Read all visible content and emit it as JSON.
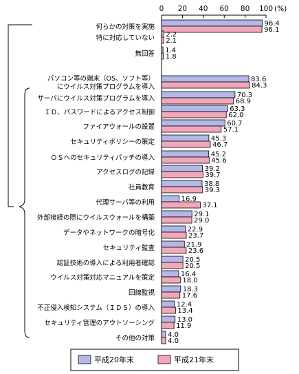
{
  "chart_data": {
    "type": "bar",
    "orientation": "horizontal",
    "unit": "(%)",
    "xlim": [
      0,
      100
    ],
    "ticks": [
      "0",
      "20",
      "40",
      "60",
      "80",
      "100"
    ],
    "colors": {
      "平成20年末": "#b4b8e8",
      "平成21年末": "#f2a8bb"
    },
    "series": [
      {
        "name": "平成20年末"
      },
      {
        "name": "平成21年末"
      }
    ],
    "rows": [
      {
        "label": [
          "何らかの対策を実施"
        ],
        "values": [
          96.4,
          96.1
        ]
      },
      {
        "label": [
          "特に対応していない"
        ],
        "values": [
          2.2,
          2.1
        ]
      },
      {
        "label": [
          "無回答"
        ],
        "values": [
          1.4,
          1.8
        ]
      },
      {
        "label": [
          "パソコン等の端末（OS、ソフト等）",
          "にウイルス対策プログラムを導入"
        ],
        "values": [
          83.6,
          84.3
        ]
      },
      {
        "label": [
          "サーバにウイルス対策プログラムを導入"
        ],
        "values": [
          70.3,
          68.9
        ]
      },
      {
        "label": [
          "ＩＤ、パスワードによるアクセス制御"
        ],
        "values": [
          63.3,
          62.0
        ]
      },
      {
        "label": [
          "ファイアウォールの設置"
        ],
        "values": [
          60.7,
          57.1
        ]
      },
      {
        "label": [
          "セキュリティポリシーの策定"
        ],
        "values": [
          45.3,
          46.7
        ]
      },
      {
        "label": [
          "ＯＳへのセキュリティパッチの導入"
        ],
        "values": [
          45.2,
          45.6
        ]
      },
      {
        "label": [
          "アクセスログの記録"
        ],
        "values": [
          39.2,
          39.7
        ]
      },
      {
        "label": [
          "社員教育"
        ],
        "values": [
          38.8,
          39.3
        ]
      },
      {
        "label": [
          "代理サーバ等の利用"
        ],
        "values": [
          16.9,
          37.1
        ]
      },
      {
        "label": [
          "外部接続の際にウイルスウォールを構築"
        ],
        "values": [
          29.1,
          29.0
        ]
      },
      {
        "label": [
          "データやネットワークの暗号化"
        ],
        "values": [
          22.9,
          23.7
        ]
      },
      {
        "label": [
          "セキュリティ監査"
        ],
        "values": [
          21.9,
          23.6
        ]
      },
      {
        "label": [
          "認証技術の導入による利用者確認"
        ],
        "values": [
          20.5,
          20.5
        ]
      },
      {
        "label": [
          "ウイルス対策対応マニュアルを策定"
        ],
        "values": [
          16.4,
          18.0
        ]
      },
      {
        "label": [
          "回線監視"
        ],
        "values": [
          18.3,
          17.6
        ]
      },
      {
        "label": [
          "不正侵入検知システム（ＩＤＳ）の導入"
        ],
        "values": [
          12.4,
          13.4
        ]
      },
      {
        "label": [
          "セキュリティ管理のアウトソーシング"
        ],
        "values": [
          13.0,
          11.9
        ]
      },
      {
        "label": [
          "その他の対策"
        ],
        "values": [
          4.0,
          4.0
        ]
      }
    ]
  }
}
